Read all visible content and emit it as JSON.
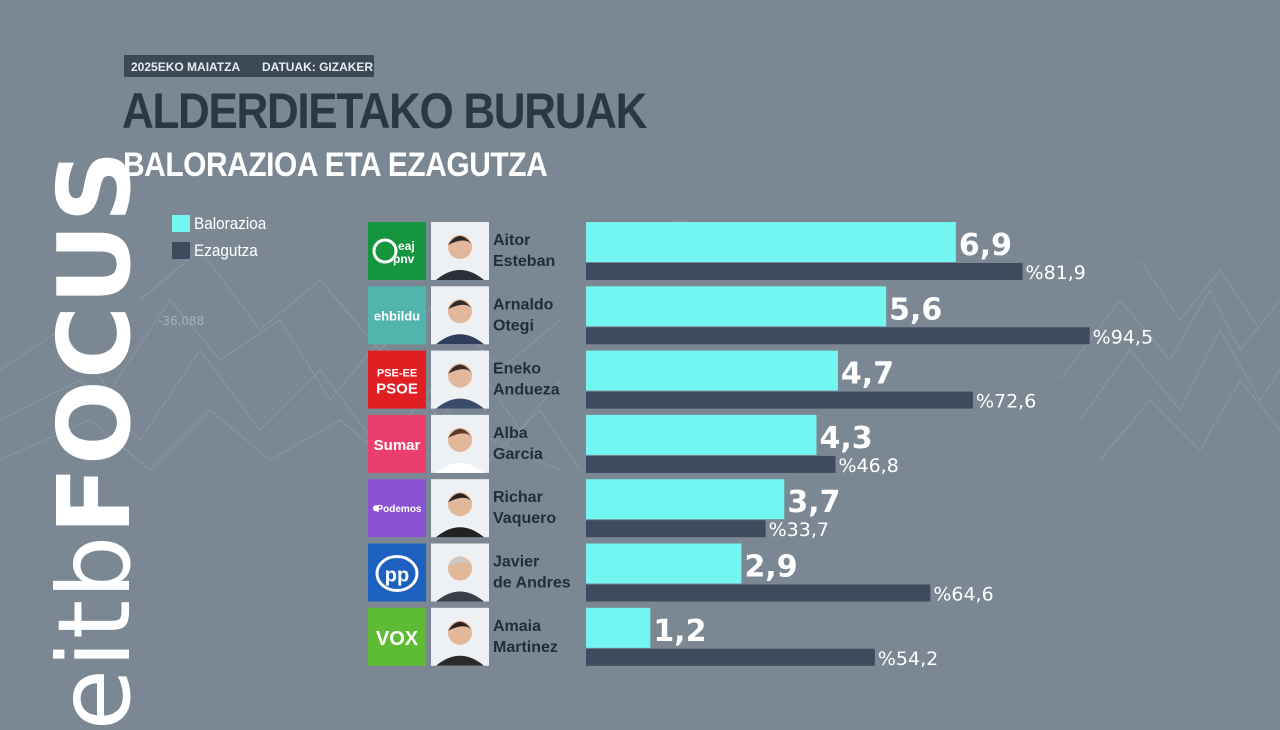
{
  "header": {
    "date": "2025EKO MAIATZA",
    "source": "DATUAK: GIZAKER"
  },
  "title": "ALDERDIETAKO BURUAK",
  "subtitle": "BALORAZIOA ETA EZAGUTZA",
  "brand": {
    "part1": "eitb",
    "part2": "FOCUS"
  },
  "background_label": "-36.088",
  "colors": {
    "valuation": "#73f5f2",
    "knowledge": "#3e4a5d",
    "background": "#7b8893"
  },
  "parties": [
    {
      "logo": "eaj-pnv-logo",
      "logo_text": [
        "eaj",
        "pnv"
      ],
      "color": "#15953d"
    },
    {
      "logo": "ehbildu-logo",
      "logo_text": [
        "ehbildu"
      ],
      "color": "#4fb5ae"
    },
    {
      "logo": "pse-psoe-logo",
      "logo_text": [
        "PSE-EE",
        "PSOE"
      ],
      "color": "#e11f23"
    },
    {
      "logo": "sumar-logo",
      "logo_text": [
        "Sumar"
      ],
      "color": "#ea3f6c"
    },
    {
      "logo": "podemos-logo",
      "logo_text": [
        "Podemos"
      ],
      "color": "#8b53d3"
    },
    {
      "logo": "pp-logo",
      "logo_text": [
        "PP"
      ],
      "color": "#1d61c0"
    },
    {
      "logo": "vox-logo",
      "logo_text": [
        "VOX"
      ],
      "color": "#5ebc34"
    }
  ],
  "chart_data": {
    "type": "bar",
    "orientation": "horizontal",
    "categories": [
      [
        "Aitor",
        "Esteban"
      ],
      [
        "Arnaldo",
        "Otegi"
      ],
      [
        "Eneko",
        "Andueza"
      ],
      [
        "Alba",
        "Garcia"
      ],
      [
        "Richar",
        "Vaquero"
      ],
      [
        "Javier",
        "de Andres"
      ],
      [
        "Amaia",
        "Martinez"
      ]
    ],
    "series": [
      {
        "name": "Balorazioa",
        "values": [
          6.9,
          5.6,
          4.7,
          4.3,
          3.7,
          2.9,
          1.2
        ],
        "labels": [
          "6,9",
          "5,6",
          "4,7",
          "4,3",
          "3,7",
          "2,9",
          "1,2"
        ]
      },
      {
        "name": "Ezagutza",
        "values": [
          81.9,
          94.5,
          72.6,
          46.8,
          33.7,
          64.6,
          54.2
        ],
        "labels": [
          "%81,9",
          "%94,5",
          "%72,6",
          "%46,8",
          "%33,7",
          "%64,6",
          "%54,2"
        ]
      }
    ],
    "scales": {
      "Balorazioa": [
        0,
        10
      ],
      "Ezagutza": [
        0,
        100
      ]
    },
    "legend": "top-left"
  }
}
